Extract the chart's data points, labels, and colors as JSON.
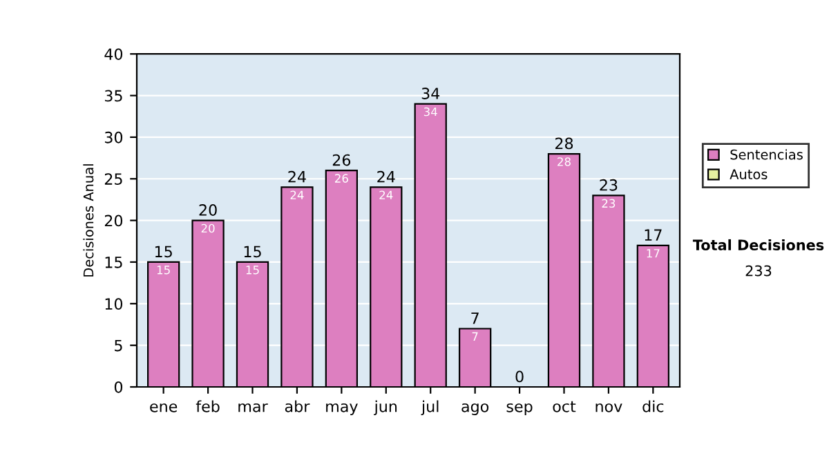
{
  "chart_data": {
    "type": "bar",
    "ylabel": "Decisiones Anual",
    "categories": [
      "ene",
      "feb",
      "mar",
      "abr",
      "may",
      "jun",
      "jul",
      "ago",
      "sep",
      "oct",
      "nov",
      "dic"
    ],
    "stacked": true,
    "series": [
      {
        "name": "Sentencias",
        "color": "#dd7fc0",
        "values": [
          15,
          20,
          15,
          24,
          26,
          24,
          34,
          7,
          0,
          28,
          23,
          17
        ],
        "value_labels": [
          "15",
          "20",
          "15",
          "24",
          "26",
          "24",
          "34",
          "7",
          null,
          "28",
          "23",
          "17"
        ]
      },
      {
        "name": "Autos",
        "color": "#e6f0a0",
        "values": [
          0,
          0,
          0,
          0,
          0,
          0,
          0,
          0,
          0,
          0,
          0,
          0
        ]
      }
    ],
    "totals": [
      "15",
      "20",
      "15",
      "24",
      "26",
      "24",
      "34",
      "7",
      "0",
      "28",
      "23",
      "17"
    ],
    "ylim": [
      0,
      40
    ],
    "yticks": [
      0,
      5,
      10,
      15,
      20,
      25,
      30,
      35,
      40
    ],
    "grid": "y",
    "legend": "right",
    "annotations": [
      "Total Decisiones",
      "233"
    ]
  }
}
